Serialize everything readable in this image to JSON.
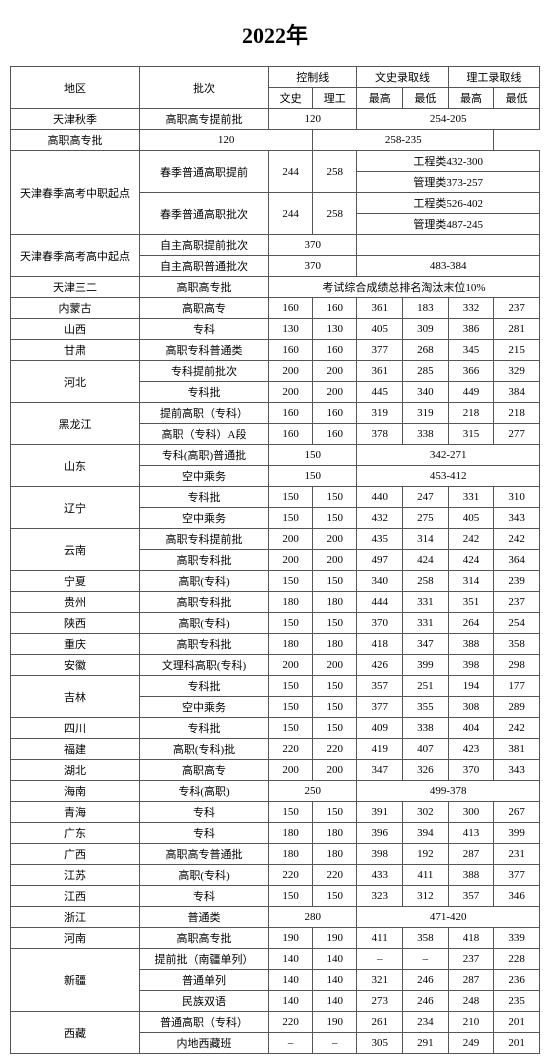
{
  "title": "2022年",
  "headers": {
    "region": "地区",
    "batch": "批次",
    "control": "控制线",
    "wenshi": "文史录取线",
    "ligong": "理工录取线",
    "wenshi_sub": "文史",
    "ligong_sub": "理工",
    "max": "最高",
    "min": "最低"
  },
  "rows": [
    {
      "region": "天津秋季",
      "batch": "高职高专提前批",
      "c1": "120",
      "c1span": 2,
      "m": "254-205",
      "mspan": 4
    },
    {
      "batch": "高职高专批",
      "c1": "120",
      "c1span": 2,
      "m": "258-235",
      "mspan": 4
    },
    {
      "region": "天津春季高考中职起点",
      "rrows": 4,
      "batch": "春季普通高职提前",
      "brows": 2,
      "c1": "244",
      "c2": "258",
      "crows": 2,
      "m": "工程类432-300",
      "mspan": 4
    },
    {
      "m": "管理类373-257",
      "mspan": 4
    },
    {
      "batch": "春季普通高职批次",
      "brows": 2,
      "c1": "244",
      "c2": "258",
      "crows": 2,
      "m": "工程类526-402",
      "mspan": 4
    },
    {
      "m": "管理类487-245",
      "mspan": 4
    },
    {
      "region": "天津春季高考高中起点",
      "rrows": 2,
      "batch": "自主高职提前批次",
      "c1": "370",
      "c1span": 2,
      "m": "",
      "mspan": 4
    },
    {
      "batch": "自主高职普通批次",
      "c1": "370",
      "c1span": 2,
      "m": "483-384",
      "mspan": 4
    },
    {
      "region": "天津三二",
      "batch": "高职高专批",
      "m": "考试综合成绩总排名淘汰末位10%",
      "mspan": 6
    },
    {
      "region": "内蒙古",
      "batch": "高职高专",
      "c1": "160",
      "c2": "160",
      "w1": "361",
      "w2": "183",
      "l1": "332",
      "l2": "237"
    },
    {
      "region": "山西",
      "batch": "专科",
      "c1": "130",
      "c2": "130",
      "w1": "405",
      "w2": "309",
      "l1": "386",
      "l2": "281"
    },
    {
      "region": "甘肃",
      "batch": "高职专科普通类",
      "c1": "160",
      "c2": "160",
      "w1": "377",
      "w2": "268",
      "l1": "345",
      "l2": "215"
    },
    {
      "region": "河北",
      "rrows": 2,
      "batch": "专科提前批次",
      "c1": "200",
      "c2": "200",
      "w1": "361",
      "w2": "285",
      "l1": "366",
      "l2": "329"
    },
    {
      "batch": "专科批",
      "c1": "200",
      "c2": "200",
      "w1": "445",
      "w2": "340",
      "l1": "449",
      "l2": "384"
    },
    {
      "region": "黑龙江",
      "rrows": 2,
      "batch": "提前高职（专科）",
      "c1": "160",
      "c2": "160",
      "w1": "319",
      "w2": "319",
      "l1": "218",
      "l2": "218"
    },
    {
      "batch": "高职（专科）A段",
      "c1": "160",
      "c2": "160",
      "w1": "378",
      "w2": "338",
      "l1": "315",
      "l2": "277"
    },
    {
      "region": "山东",
      "rrows": 2,
      "batch": "专科(高职)普通批",
      "c1": "150",
      "c1span": 2,
      "m": "342-271",
      "mspan": 4
    },
    {
      "batch": "空中乘务",
      "c1": "150",
      "c1span": 2,
      "m": "453-412",
      "mspan": 4
    },
    {
      "region": "辽宁",
      "rrows": 2,
      "batch": "专科批",
      "c1": "150",
      "c2": "150",
      "w1": "440",
      "w2": "247",
      "l1": "331",
      "l2": "310"
    },
    {
      "batch": "空中乘务",
      "c1": "150",
      "c2": "150",
      "w1": "432",
      "w2": "275",
      "l1": "405",
      "l2": "343"
    },
    {
      "region": "云南",
      "rrows": 2,
      "batch": "高职专科提前批",
      "c1": "200",
      "c2": "200",
      "w1": "435",
      "w2": "314",
      "l1": "242",
      "l2": "242"
    },
    {
      "batch": "高职专科批",
      "c1": "200",
      "c2": "200",
      "w1": "497",
      "w2": "424",
      "l1": "424",
      "l2": "364"
    },
    {
      "region": "宁夏",
      "batch": "高职(专科)",
      "c1": "150",
      "c2": "150",
      "w1": "340",
      "w2": "258",
      "l1": "314",
      "l2": "239"
    },
    {
      "region": "贵州",
      "batch": "高职专科批",
      "c1": "180",
      "c2": "180",
      "w1": "444",
      "w2": "331",
      "l1": "351",
      "l2": "237"
    },
    {
      "region": "陕西",
      "batch": "高职(专科)",
      "c1": "150",
      "c2": "150",
      "w1": "370",
      "w2": "331",
      "l1": "264",
      "l2": "254"
    },
    {
      "region": "重庆",
      "batch": "高职专科批",
      "c1": "180",
      "c2": "180",
      "w1": "418",
      "w2": "347",
      "l1": "388",
      "l2": "358"
    },
    {
      "region": "安徽",
      "batch": "文理科高职(专科)",
      "c1": "200",
      "c2": "200",
      "w1": "426",
      "w2": "399",
      "l1": "398",
      "l2": "298"
    },
    {
      "region": "吉林",
      "rrows": 2,
      "batch": "专科批",
      "c1": "150",
      "c2": "150",
      "w1": "357",
      "w2": "251",
      "l1": "194",
      "l2": "177"
    },
    {
      "batch": "空中乘务",
      "c1": "150",
      "c2": "150",
      "w1": "377",
      "w2": "355",
      "l1": "308",
      "l2": "289"
    },
    {
      "region": "四川",
      "batch": "专科批",
      "c1": "150",
      "c2": "150",
      "w1": "409",
      "w2": "338",
      "l1": "404",
      "l2": "242"
    },
    {
      "region": "福建",
      "batch": "高职(专科)批",
      "c1": "220",
      "c2": "220",
      "w1": "419",
      "w2": "407",
      "l1": "423",
      "l2": "381"
    },
    {
      "region": "湖北",
      "batch": "高职高专",
      "c1": "200",
      "c2": "200",
      "w1": "347",
      "w2": "326",
      "l1": "370",
      "l2": "343"
    },
    {
      "region": "海南",
      "batch": "专科(高职)",
      "c1": "250",
      "c1span": 2,
      "m": "499-378",
      "mspan": 4
    },
    {
      "region": "青海",
      "batch": "专科",
      "c1": "150",
      "c2": "150",
      "w1": "391",
      "w2": "302",
      "l1": "300",
      "l2": "267"
    },
    {
      "region": "广东",
      "batch": "专科",
      "c1": "180",
      "c2": "180",
      "w1": "396",
      "w2": "394",
      "l1": "413",
      "l2": "399"
    },
    {
      "region": "广西",
      "batch": "高职高专普通批",
      "c1": "180",
      "c2": "180",
      "w1": "398",
      "w2": "192",
      "l1": "287",
      "l2": "231"
    },
    {
      "region": "江苏",
      "batch": "高职(专科)",
      "c1": "220",
      "c2": "220",
      "w1": "433",
      "w2": "411",
      "l1": "388",
      "l2": "377"
    },
    {
      "region": "江西",
      "batch": "专科",
      "c1": "150",
      "c2": "150",
      "w1": "323",
      "w2": "312",
      "l1": "357",
      "l2": "346"
    },
    {
      "region": "浙江",
      "batch": "普通类",
      "c1": "280",
      "c1span": 2,
      "m": "471-420",
      "mspan": 4
    },
    {
      "region": "河南",
      "batch": "高职高专批",
      "c1": "190",
      "c2": "190",
      "w1": "411",
      "w2": "358",
      "l1": "418",
      "l2": "339"
    },
    {
      "region": "新疆",
      "rrows": 3,
      "batch": "提前批（南疆单列）",
      "c1": "140",
      "c2": "140",
      "w1": "–",
      "w2": "–",
      "l1": "237",
      "l2": "228"
    },
    {
      "batch": "普通单列",
      "c1": "140",
      "c2": "140",
      "w1": "321",
      "w2": "246",
      "l1": "287",
      "l2": "236"
    },
    {
      "batch": "民族双语",
      "c1": "140",
      "c2": "140",
      "w1": "273",
      "w2": "246",
      "l1": "248",
      "l2": "235"
    },
    {
      "region": "西藏",
      "rrows": 2,
      "batch": "普通高职（专科）",
      "c1": "220",
      "c2": "190",
      "w1": "261",
      "w2": "234",
      "l1": "210",
      "l2": "201"
    },
    {
      "batch": "内地西藏班",
      "c1": "–",
      "c2": "–",
      "w1": "305",
      "w2": "291",
      "l1": "249",
      "l2": "201"
    }
  ]
}
